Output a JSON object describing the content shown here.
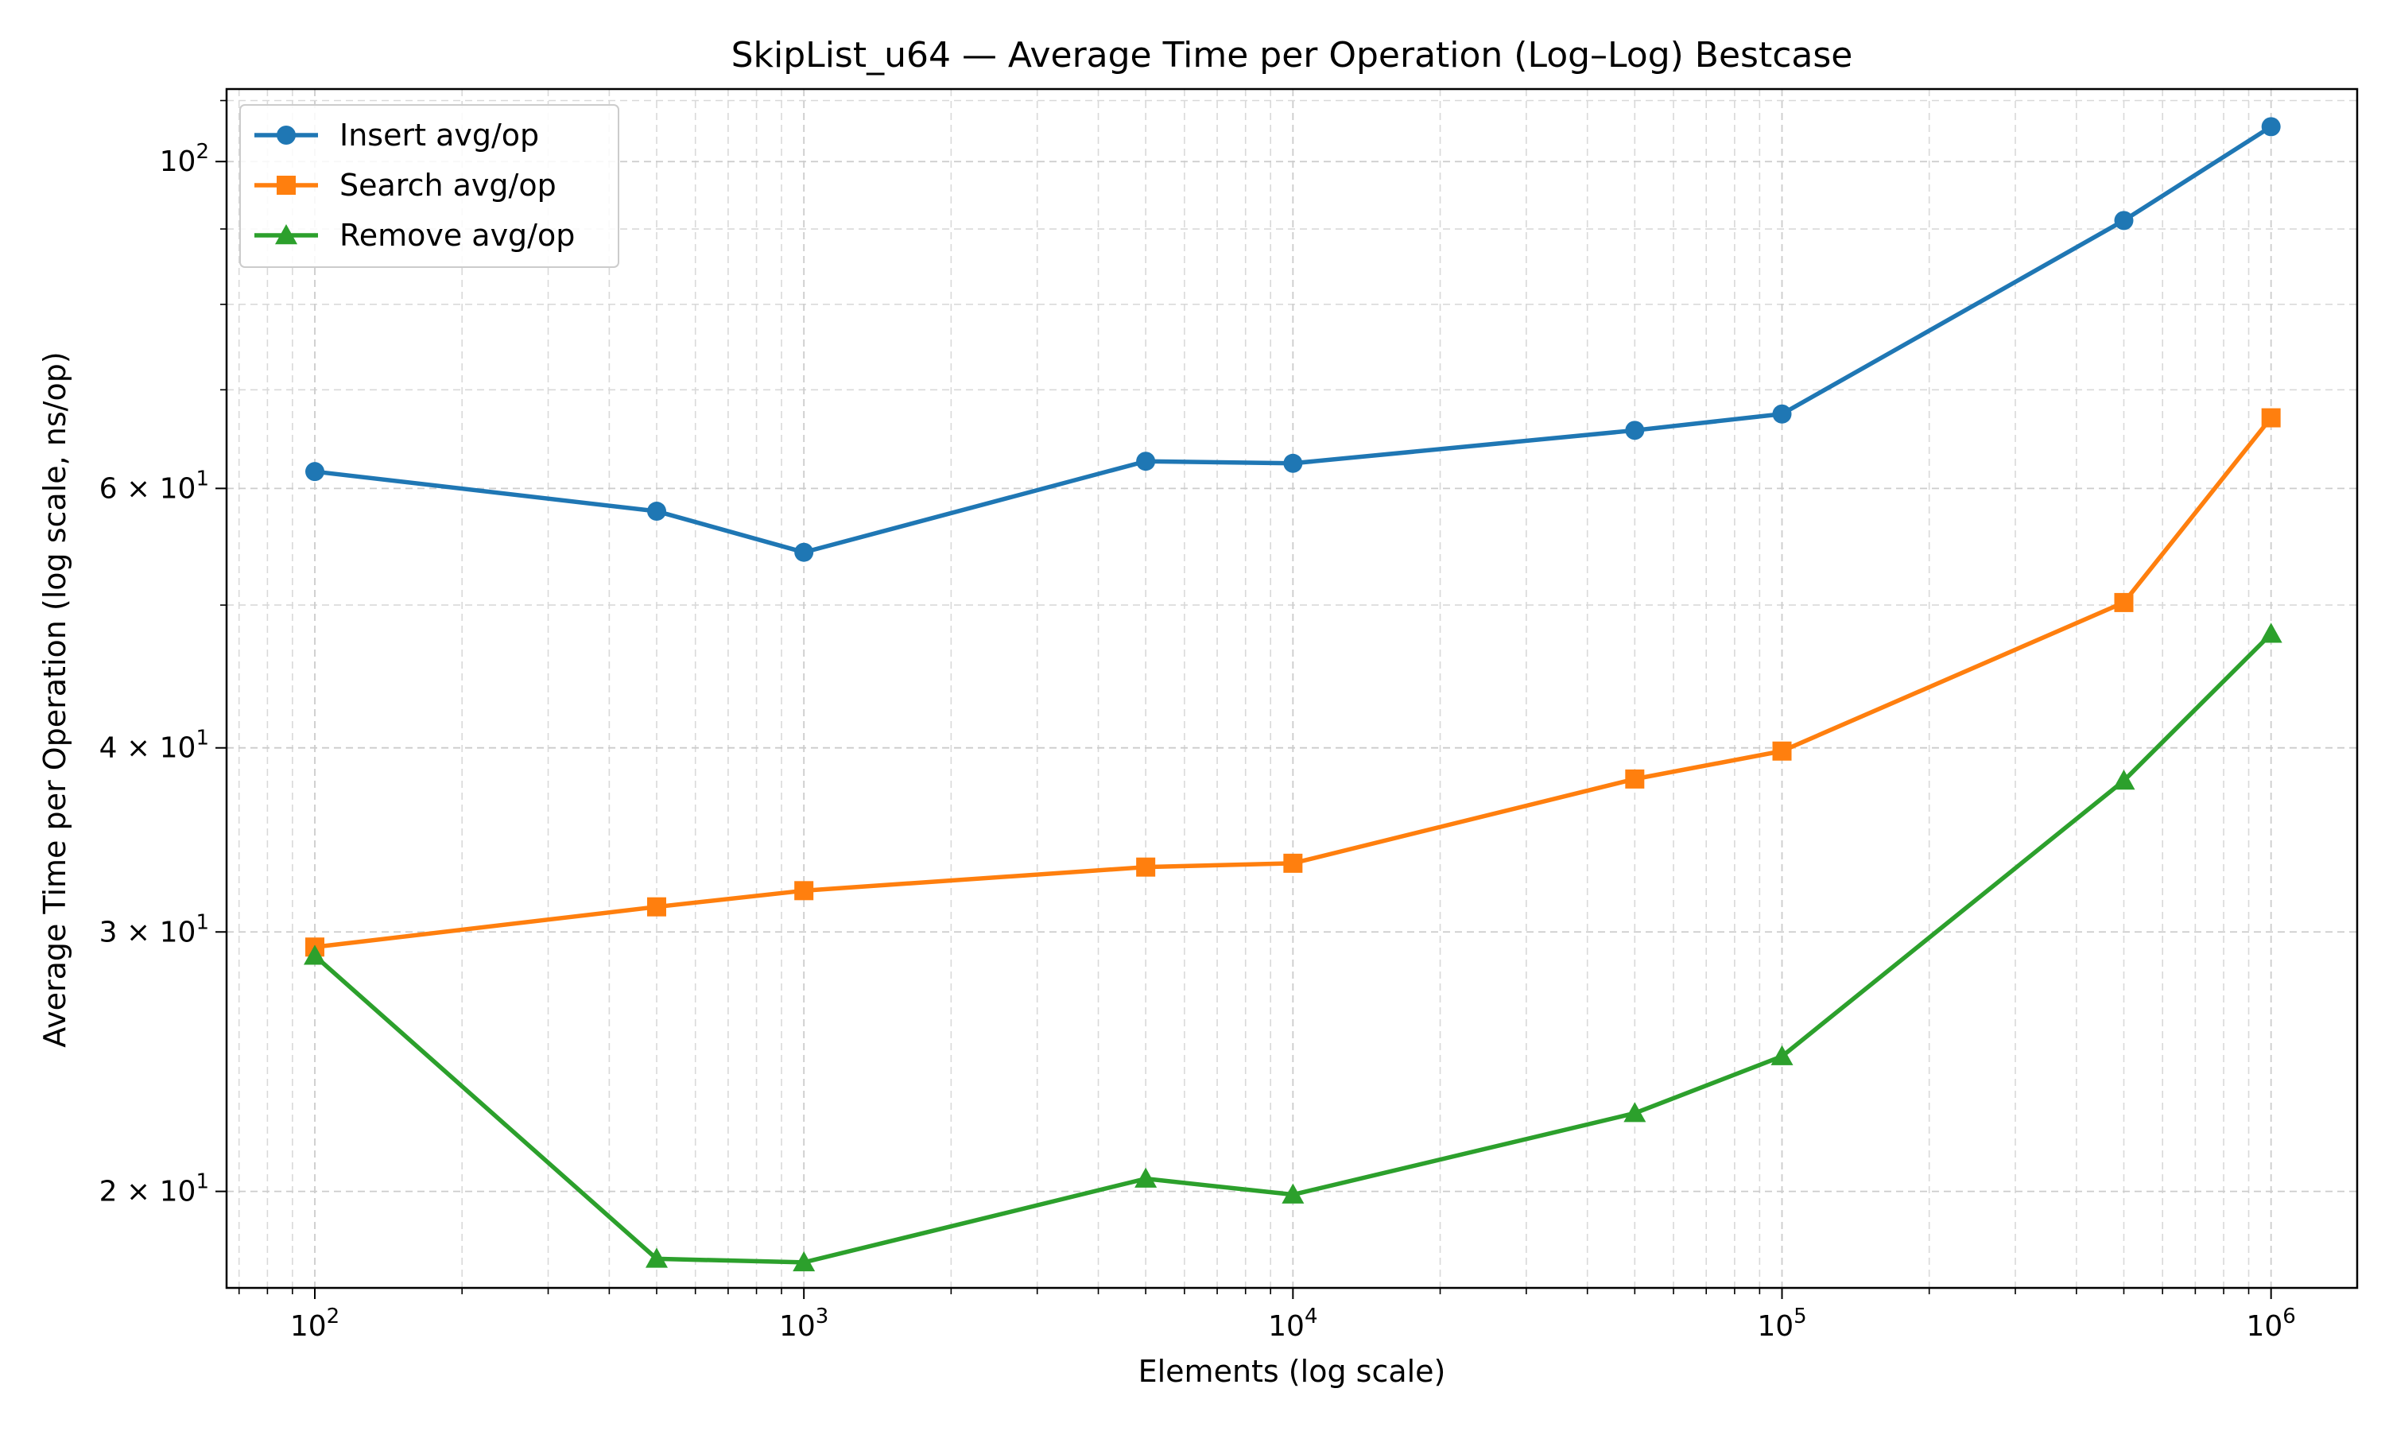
{
  "chart_data": {
    "type": "line",
    "title": "SkipList_u64 — Average Time per Operation (Log–Log) Bestcase",
    "xlabel": "Elements (log scale)",
    "ylabel": "Average Time per Operation (log scale, ns/op)",
    "xscale": "log",
    "yscale": "log",
    "xlim": [
      66,
      1500000
    ],
    "ylim": [
      17.2,
      112
    ],
    "grid": true,
    "legend_position": "top-left",
    "x_ticks": [
      {
        "value": 100,
        "mantissa": "",
        "base": "10",
        "exp": "2"
      },
      {
        "value": 1000,
        "mantissa": "",
        "base": "10",
        "exp": "3"
      },
      {
        "value": 10000,
        "mantissa": "",
        "base": "10",
        "exp": "4"
      },
      {
        "value": 100000,
        "mantissa": "",
        "base": "10",
        "exp": "5"
      },
      {
        "value": 1000000,
        "mantissa": "",
        "base": "10",
        "exp": "6"
      }
    ],
    "y_ticks": [
      {
        "value": 20,
        "mantissa": "2 × ",
        "base": "10",
        "exp": "1"
      },
      {
        "value": 30,
        "mantissa": "3 × ",
        "base": "10",
        "exp": "1"
      },
      {
        "value": 40,
        "mantissa": "4 × ",
        "base": "10",
        "exp": "1"
      },
      {
        "value": 60,
        "mantissa": "6 × ",
        "base": "10",
        "exp": "1"
      },
      {
        "value": 100,
        "mantissa": "",
        "base": "10",
        "exp": "2"
      }
    ],
    "x": [
      100,
      500,
      1000,
      5000,
      10000,
      50000,
      100000,
      500000,
      1000000
    ],
    "series": [
      {
        "name": "Insert avg/op",
        "color": "#1f77b4",
        "marker": "circle",
        "values": [
          61.6,
          57.9,
          54.3,
          62.6,
          62.4,
          65.7,
          67.4,
          91.2,
          105.6
        ]
      },
      {
        "name": "Search avg/op",
        "color": "#ff7f0e",
        "marker": "square",
        "values": [
          29.3,
          31.2,
          32.0,
          33.2,
          33.4,
          38.1,
          39.8,
          50.2,
          67.0
        ]
      },
      {
        "name": "Remove avg/op",
        "color": "#2ca02c",
        "marker": "triangle",
        "values": [
          28.9,
          18.0,
          17.9,
          20.4,
          19.9,
          22.6,
          24.7,
          38.0,
          47.8
        ]
      }
    ]
  }
}
